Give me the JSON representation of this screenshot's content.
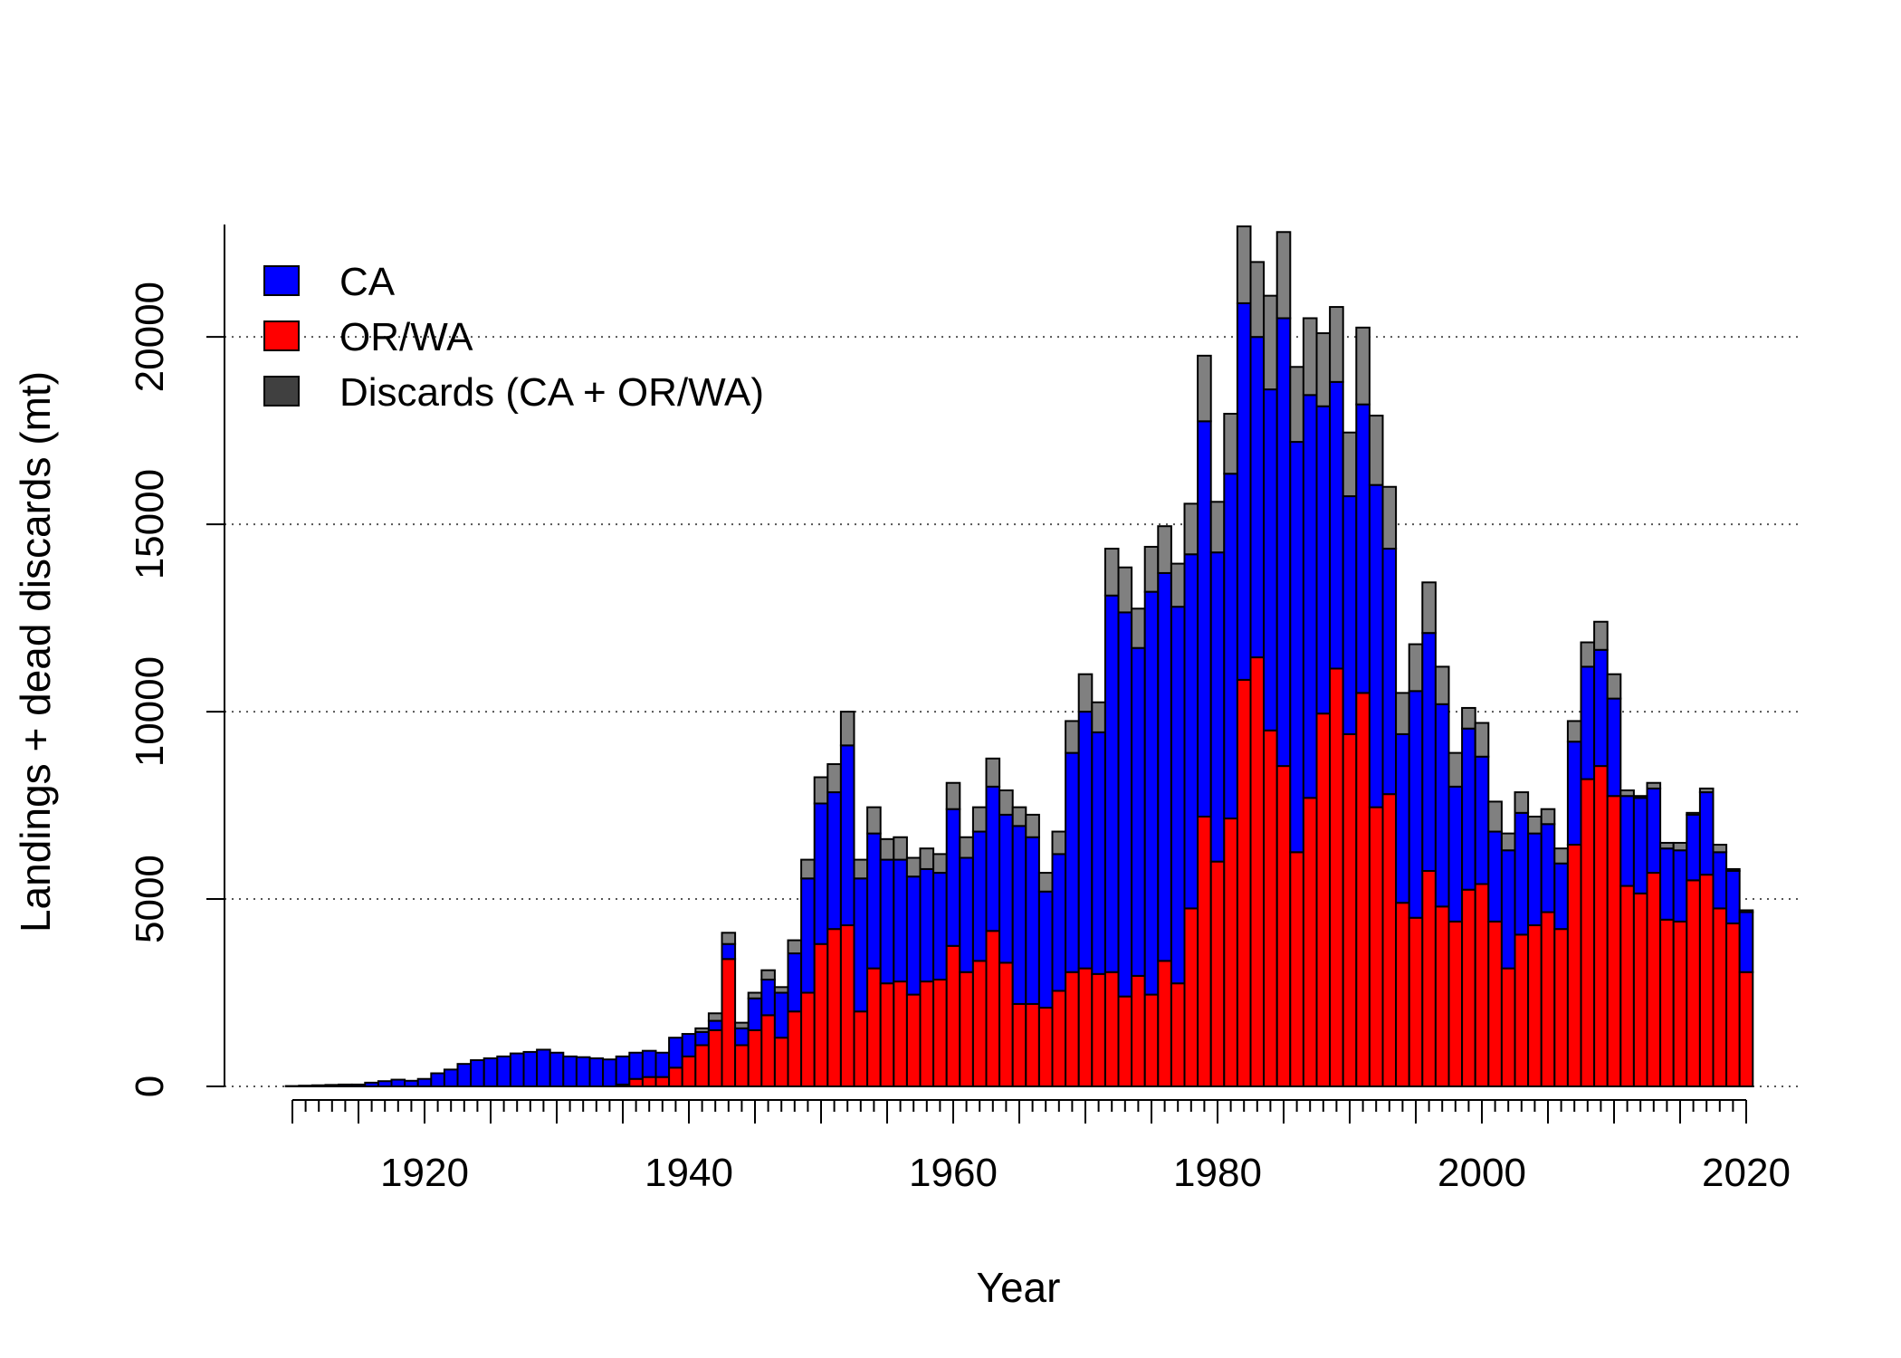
{
  "chart_data": {
    "type": "bar",
    "stacked": true,
    "title": "",
    "xlabel": "Year",
    "ylabel": "Landings + dead discards (mt)",
    "ylim": [
      0,
      23000
    ],
    "xlim": [
      1910,
      2020
    ],
    "x_ticks": [
      1920,
      1940,
      1960,
      1980,
      2000,
      2020
    ],
    "y_ticks": [
      0,
      5000,
      10000,
      15000,
      20000
    ],
    "grid": "horizontal dotted",
    "legend_position": "top-left",
    "years": [
      1910,
      1911,
      1912,
      1913,
      1914,
      1915,
      1916,
      1917,
      1918,
      1919,
      1920,
      1921,
      1922,
      1923,
      1924,
      1925,
      1926,
      1927,
      1928,
      1929,
      1930,
      1931,
      1932,
      1933,
      1934,
      1935,
      1936,
      1937,
      1938,
      1939,
      1940,
      1941,
      1942,
      1943,
      1944,
      1945,
      1946,
      1947,
      1948,
      1949,
      1950,
      1951,
      1952,
      1953,
      1954,
      1955,
      1956,
      1957,
      1958,
      1959,
      1960,
      1961,
      1962,
      1963,
      1964,
      1965,
      1966,
      1967,
      1968,
      1969,
      1970,
      1971,
      1972,
      1973,
      1974,
      1975,
      1976,
      1977,
      1978,
      1979,
      1980,
      1981,
      1982,
      1983,
      1984,
      1985,
      1986,
      1987,
      1988,
      1989,
      1990,
      1991,
      1992,
      1993,
      1994,
      1995,
      1996,
      1997,
      1998,
      1999,
      2000,
      2001,
      2002,
      2003,
      2004,
      2005,
      2006,
      2007,
      2008,
      2009,
      2010,
      2011,
      2012,
      2013,
      2014,
      2015,
      2016,
      2017,
      2018,
      2019,
      2020
    ],
    "series": [
      {
        "name": "OR/WA",
        "color": "#ff0000",
        "values": [
          0,
          0,
          0,
          0,
          0,
          0,
          0,
          0,
          0,
          0,
          0,
          0,
          0,
          0,
          0,
          0,
          0,
          0,
          0,
          0,
          0,
          0,
          0,
          0,
          0,
          50,
          200,
          250,
          250,
          500,
          800,
          1100,
          1500,
          3400,
          1100,
          1500,
          1900,
          1300,
          2000,
          2500,
          3800,
          4200,
          4300,
          2000,
          3150,
          2750,
          2800,
          2450,
          2800,
          2850,
          3750,
          3050,
          3350,
          4150,
          3300,
          2200,
          2200,
          2100,
          2550,
          3050,
          3150,
          3000,
          3050,
          2400,
          2950,
          2450,
          3350,
          2750,
          4750,
          7200,
          6000,
          7150,
          10850,
          11450,
          9500,
          8550,
          6250,
          7700,
          9950,
          11150,
          9400,
          10500,
          7450,
          7800,
          4900,
          4500,
          5750,
          4800,
          4400,
          5250,
          5400,
          4400,
          3150,
          4050,
          4300,
          4650,
          4200,
          6450,
          8200,
          8550,
          7750,
          5350,
          5150,
          5700,
          4450,
          4400,
          5500,
          5650,
          4750,
          4350,
          3050
        ]
      },
      {
        "name": "CA",
        "color": "#0000ff",
        "values": [
          10,
          20,
          30,
          40,
          50,
          50,
          100,
          140,
          180,
          150,
          200,
          350,
          450,
          600,
          700,
          750,
          800,
          880,
          920,
          980,
          900,
          800,
          780,
          750,
          720,
          750,
          700,
          700,
          650,
          800,
          600,
          350,
          250,
          400,
          450,
          850,
          950,
          1200,
          1550,
          3050,
          3750,
          3650,
          4800,
          3550,
          3600,
          3300,
          3250,
          3150,
          3000,
          2850,
          3650,
          3050,
          3450,
          3850,
          3950,
          4750,
          4450,
          3100,
          3650,
          5850,
          6850,
          6450,
          10050,
          10250,
          8750,
          10750,
          10350,
          10050,
          9450,
          10550,
          8250,
          9200,
          10050,
          8550,
          9100,
          11950,
          10950,
          10750,
          8200,
          7650,
          6350,
          7700,
          8600,
          6550,
          4500,
          6050,
          6350,
          5400,
          3600,
          4300,
          3400,
          2400,
          3150,
          3250,
          2450,
          2350,
          1750,
          2750,
          3000,
          3100,
          2600,
          2400,
          2550,
          2250,
          1900,
          1900,
          1750,
          2200,
          1500,
          1400,
          1600
        ]
      },
      {
        "name": "Discards (CA + OR/WA)",
        "color": "#808080",
        "values": [
          0,
          0,
          0,
          0,
          0,
          0,
          0,
          0,
          0,
          0,
          0,
          0,
          0,
          0,
          0,
          0,
          0,
          0,
          0,
          0,
          0,
          0,
          0,
          0,
          0,
          0,
          0,
          0,
          0,
          0,
          0,
          100,
          200,
          300,
          150,
          150,
          250,
          150,
          350,
          500,
          700,
          750,
          900,
          500,
          700,
          550,
          600,
          500,
          550,
          500,
          700,
          550,
          650,
          750,
          650,
          500,
          600,
          500,
          600,
          850,
          1000,
          800,
          1250,
          1200,
          1050,
          1200,
          1250,
          1150,
          1350,
          1750,
          1350,
          1600,
          2050,
          2000,
          2500,
          2300,
          2000,
          2050,
          1950,
          2000,
          1700,
          2050,
          1850,
          1650,
          1100,
          1250,
          1350,
          1000,
          900,
          550,
          900,
          800,
          450,
          550,
          450,
          400,
          400,
          550,
          650,
          750,
          650,
          150,
          50,
          150,
          150,
          200,
          50,
          100,
          200,
          50,
          50
        ]
      }
    ],
    "legend": [
      {
        "label": "CA",
        "color": "#0000ff"
      },
      {
        "label": "OR/WA",
        "color": "#ff0000"
      },
      {
        "label": "Discards (CA + OR/WA)",
        "color": "#404040"
      }
    ]
  }
}
